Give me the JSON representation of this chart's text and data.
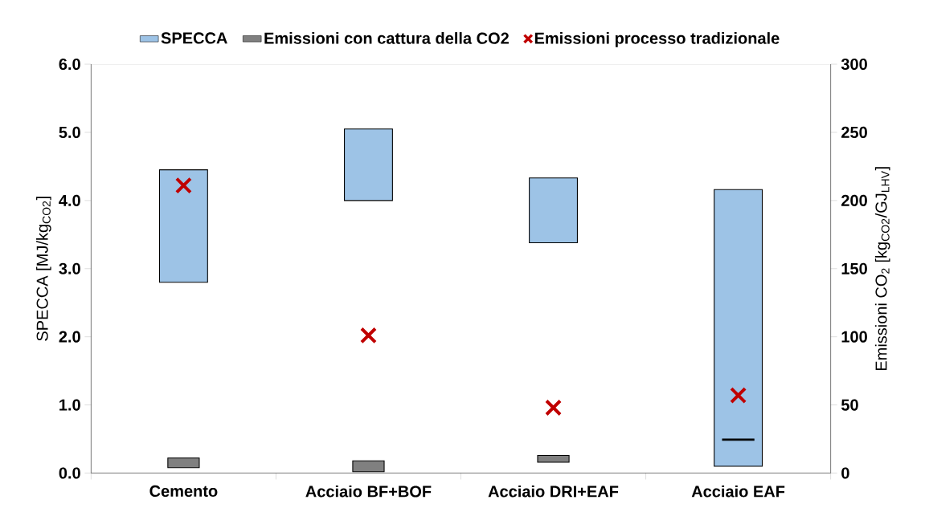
{
  "chart_data": {
    "type": "bar",
    "categories": [
      "Cemento",
      "Acciaio BF+BOF",
      "Acciaio DRI+EAF",
      "Acciaio EAF"
    ],
    "series": [
      {
        "name": "SPECCA",
        "color": "#9dc3e6",
        "base": [
          2.8,
          4.0,
          3.38,
          0.1
        ],
        "values": [
          1.65,
          1.05,
          0.95,
          4.06
        ]
      },
      {
        "name": "Emissioni con cattura della CO2",
        "axis": "y2",
        "color": "#808080",
        "colors": [
          "#808080",
          "#808080",
          "#808080",
          "#000000"
        ],
        "base": [
          4,
          1,
          8,
          24
        ],
        "values": [
          7,
          8,
          5,
          1
        ]
      },
      {
        "name": "Emissioni processo tradizionale",
        "type": "scatter",
        "axis": "y2",
        "color": "#c00000",
        "marker": "cross",
        "values": [
          211,
          101,
          48,
          57
        ]
      }
    ],
    "ylabel": "SPECCA [MJ/kg$_{CO2}$]",
    "y2label": "Emissioni CO$_{2}$ [kg$_{CO2}$/GJ$_{LHV}$]",
    "ylim": [
      0,
      6
    ],
    "yticks": [
      {
        "value": 0,
        "label": "0.0"
      },
      {
        "value": 1,
        "label": "1.0"
      },
      {
        "value": 2,
        "label": "2.0"
      },
      {
        "value": 3,
        "label": "3.0"
      },
      {
        "value": 4,
        "label": "4.0"
      },
      {
        "value": 5,
        "label": "5.0"
      },
      {
        "value": 6,
        "label": "6.0"
      }
    ],
    "y2lim": [
      0,
      300
    ],
    "y2ticks": [
      0,
      50,
      100,
      150,
      200,
      250,
      300
    ],
    "legend": "top"
  }
}
